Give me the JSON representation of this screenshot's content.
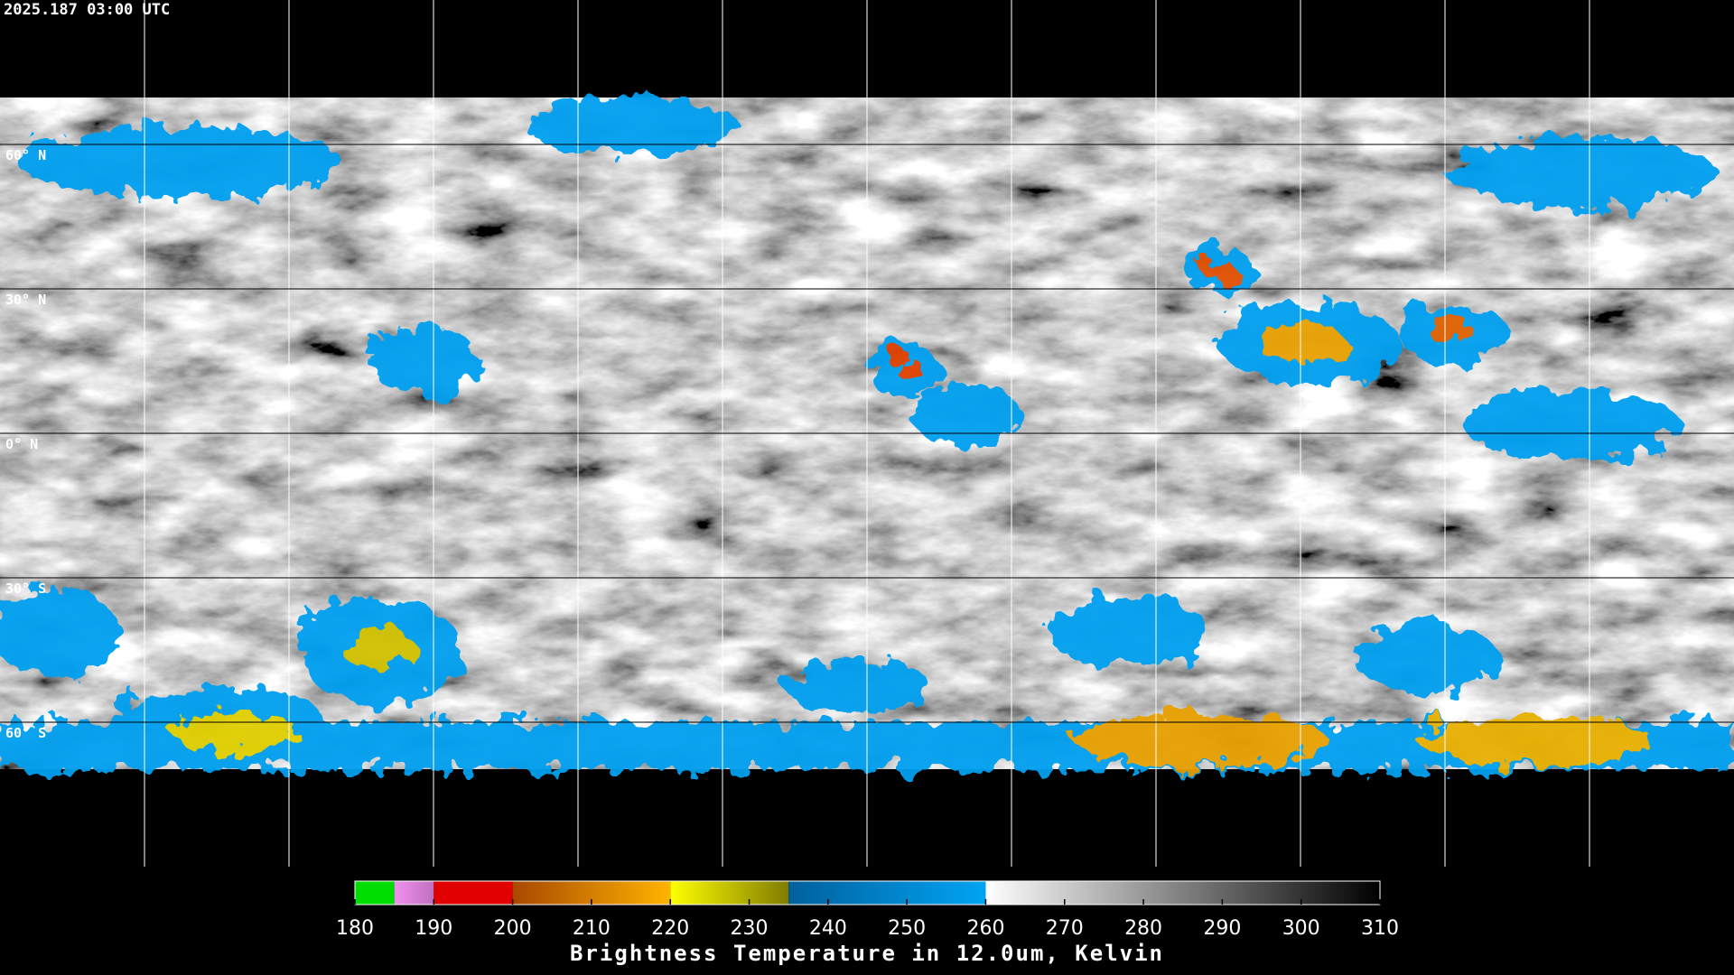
{
  "timestamp": "2025.187 03:00 UTC",
  "latitude_labels": [
    "60° N",
    "30° N",
    "0° N",
    "30° S",
    "60° S"
  ],
  "colorbar": {
    "title": "Brightness Temperature in 12.0um, Kelvin",
    "range": [
      180,
      310
    ],
    "ticks": [
      180,
      190,
      200,
      210,
      220,
      230,
      240,
      250,
      260,
      270,
      280,
      290,
      300,
      310
    ],
    "segments": [
      {
        "from": 180,
        "to": 185,
        "colors": [
          "#00dd00",
          "#00dd00"
        ]
      },
      {
        "from": 185,
        "to": 190,
        "colors": [
          "#f090f0",
          "#c070c0"
        ]
      },
      {
        "from": 190,
        "to": 200,
        "colors": [
          "#e00000",
          "#e00000"
        ]
      },
      {
        "from": 200,
        "to": 220,
        "colors": [
          "#a84800",
          "#ffb400"
        ]
      },
      {
        "from": 220,
        "to": 235,
        "colors": [
          "#ffff00",
          "#807c00"
        ]
      },
      {
        "from": 235,
        "to": 260,
        "colors": [
          "#00609c",
          "#00a4f4"
        ]
      },
      {
        "from": 260,
        "to": 310,
        "colors": [
          "#ffffff",
          "#000000"
        ]
      }
    ]
  }
}
